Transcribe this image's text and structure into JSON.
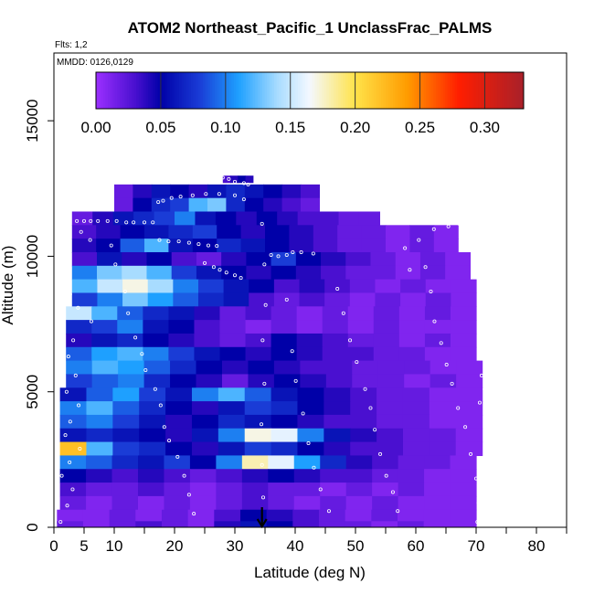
{
  "chart_data": {
    "type": "heatmap",
    "title": "ATOM2 Northeast_Pacific_1 UnclassFrac_PALMS",
    "flights_label": "Flts: 1,2",
    "dates_label": "MMDD: 0126,0129",
    "xlabel": "Latitude (deg N)",
    "ylabel": "Altitude (m)",
    "xlim": [
      0,
      85
    ],
    "ylim": [
      0,
      17500
    ],
    "x_ticks": [
      0,
      5,
      10,
      20,
      30,
      40,
      50,
      60,
      70,
      80
    ],
    "x_minor_ticks": [
      15,
      25,
      35,
      45,
      55,
      65,
      75,
      85
    ],
    "y_ticks": [
      0,
      5000,
      10000,
      15000
    ],
    "colorbar": {
      "min": 0.0,
      "max": 0.33,
      "tick_values": [
        0.0,
        0.05,
        0.1,
        0.15,
        0.2,
        0.25,
        0.3
      ],
      "tick_labels": [
        "0.00",
        "0.05",
        "0.10",
        "0.15",
        "0.20",
        "0.25",
        "0.30"
      ],
      "stops": [
        {
          "v": 0.0,
          "color": "#9b30ff"
        },
        {
          "v": 0.03,
          "color": "#4a10d0"
        },
        {
          "v": 0.05,
          "color": "#0000a8"
        },
        {
          "v": 0.08,
          "color": "#1a3cd6"
        },
        {
          "v": 0.11,
          "color": "#1ea0ff"
        },
        {
          "v": 0.14,
          "color": "#a8dcff"
        },
        {
          "v": 0.165,
          "color": "#f4f8ff"
        },
        {
          "v": 0.2,
          "color": "#ffe34a"
        },
        {
          "v": 0.24,
          "color": "#ff9c00"
        },
        {
          "v": 0.28,
          "color": "#ff1e00"
        },
        {
          "v": 0.33,
          "color": "#a8202a"
        }
      ]
    },
    "marker": {
      "latitude": 34.5,
      "symbol": "down-arrow"
    },
    "layers": [
      {
        "alt": 12850,
        "dz": 250,
        "lat0": 28,
        "lat1": 33,
        "values": [
          0.03,
          0.04,
          0.05,
          0.04
        ]
      },
      {
        "alt": 12400,
        "dz": 500,
        "lat0": 10,
        "lat1": 44,
        "values": [
          0.02,
          0.04,
          0.06,
          0.05,
          0.04,
          0.06,
          0.07,
          0.06,
          0.05,
          0.04,
          0.03
        ]
      },
      {
        "alt": 11900,
        "dz": 500,
        "lat0": 10,
        "lat1": 44,
        "values": [
          0.02,
          0.05,
          0.07,
          0.08,
          0.12,
          0.13,
          0.07,
          0.05,
          0.04,
          0.03,
          0.02
        ]
      },
      {
        "alt": 11400,
        "dz": 500,
        "lat0": 3,
        "lat1": 54,
        "values": [
          0.02,
          0.04,
          0.06,
          0.07,
          0.08,
          0.1,
          0.06,
          0.05,
          0.04,
          0.05,
          0.04,
          0.03,
          0.03,
          0.02,
          0.02
        ]
      },
      {
        "alt": 10900,
        "dz": 500,
        "lat0": 3,
        "lat1": 67,
        "values": [
          0.03,
          0.04,
          0.05,
          0.06,
          0.07,
          0.08,
          0.05,
          0.04,
          0.05,
          0.04,
          0.03,
          0.02,
          0.02,
          0.01,
          0.02,
          0.01
        ]
      },
      {
        "alt": 10400,
        "dz": 500,
        "lat0": 3,
        "lat1": 67,
        "values": [
          0.04,
          0.05,
          0.09,
          0.12,
          0.06,
          0.05,
          0.07,
          0.06,
          0.05,
          0.04,
          0.03,
          0.02,
          0.02,
          0.01,
          0.02,
          0.01
        ]
      },
      {
        "alt": 9900,
        "dz": 500,
        "lat0": 3,
        "lat1": 69,
        "values": [
          0.03,
          0.06,
          0.04,
          0.05,
          0.03,
          0.02,
          0.04,
          0.05,
          0.08,
          0.05,
          0.04,
          0.03,
          0.02,
          0.01,
          0.02,
          0.01
        ]
      },
      {
        "alt": 9400,
        "dz": 500,
        "lat0": 3,
        "lat1": 69,
        "values": [
          0.1,
          0.13,
          0.14,
          0.12,
          0.08,
          0.06,
          0.05,
          0.04,
          0.05,
          0.04,
          0.03,
          0.02,
          0.02,
          0.01,
          0.02,
          0.01
        ]
      },
      {
        "alt": 8900,
        "dz": 500,
        "lat0": 3,
        "lat1": 70,
        "values": [
          0.12,
          0.15,
          0.17,
          0.14,
          0.1,
          0.08,
          0.06,
          0.05,
          0.03,
          0.04,
          0.03,
          0.02,
          0.01,
          0.02,
          0.01,
          0.01
        ]
      },
      {
        "alt": 8400,
        "dz": 500,
        "lat0": 3,
        "lat1": 70,
        "values": [
          0.08,
          0.1,
          0.13,
          0.11,
          0.09,
          0.07,
          0.06,
          0.03,
          0.02,
          0.03,
          0.02,
          0.01,
          0.02,
          0.01,
          0.02,
          0.01
        ]
      },
      {
        "alt": 7900,
        "dz": 500,
        "lat0": 2,
        "lat1": 70,
        "values": [
          0.15,
          0.12,
          0.09,
          0.07,
          0.06,
          0.04,
          0.02,
          0.03,
          0.02,
          0.01,
          0.02,
          0.01,
          0.02,
          0.01,
          0.02,
          0.01
        ]
      },
      {
        "alt": 7400,
        "dz": 500,
        "lat0": 2,
        "lat1": 70,
        "values": [
          0.07,
          0.08,
          0.1,
          0.06,
          0.05,
          0.03,
          0.02,
          0.01,
          0.02,
          0.01,
          0.02,
          0.01,
          0.02,
          0.01,
          0.01,
          0.01
        ]
      },
      {
        "alt": 6900,
        "dz": 500,
        "lat0": 2,
        "lat1": 70,
        "values": [
          0.04,
          0.06,
          0.07,
          0.05,
          0.04,
          0.03,
          0.02,
          0.03,
          0.05,
          0.04,
          0.03,
          0.02,
          0.02,
          0.01,
          0.02,
          0.01
        ]
      },
      {
        "alt": 6400,
        "dz": 500,
        "lat0": 2,
        "lat1": 70,
        "values": [
          0.09,
          0.11,
          0.12,
          0.1,
          0.08,
          0.06,
          0.05,
          0.04,
          0.05,
          0.04,
          0.03,
          0.03,
          0.02,
          0.02,
          0.01,
          0.01
        ]
      },
      {
        "alt": 5900,
        "dz": 500,
        "lat0": 2,
        "lat1": 71,
        "values": [
          0.1,
          0.12,
          0.11,
          0.09,
          0.07,
          0.05,
          0.04,
          0.05,
          0.04,
          0.03,
          0.03,
          0.02,
          0.02,
          0.02,
          0.01,
          0.01
        ]
      },
      {
        "alt": 5400,
        "dz": 500,
        "lat0": 2,
        "lat1": 71,
        "values": [
          0.08,
          0.09,
          0.1,
          0.07,
          0.05,
          0.04,
          0.02,
          0.04,
          0.05,
          0.04,
          0.03,
          0.02,
          0.02,
          0.01,
          0.02,
          0.01
        ]
      },
      {
        "alt": 4900,
        "dz": 500,
        "lat0": 1,
        "lat1": 71,
        "values": [
          0.06,
          0.09,
          0.11,
          0.08,
          0.06,
          0.1,
          0.12,
          0.09,
          0.06,
          0.05,
          0.04,
          0.03,
          0.02,
          0.02,
          0.01,
          0.01
        ]
      },
      {
        "alt": 4400,
        "dz": 500,
        "lat0": 1,
        "lat1": 71,
        "values": [
          0.1,
          0.12,
          0.09,
          0.07,
          0.05,
          0.04,
          0.06,
          0.08,
          0.07,
          0.05,
          0.04,
          0.03,
          0.02,
          0.02,
          0.01,
          0.01
        ]
      },
      {
        "alt": 3900,
        "dz": 500,
        "lat0": 1,
        "lat1": 71,
        "values": [
          0.09,
          0.1,
          0.08,
          0.06,
          0.04,
          0.05,
          0.07,
          0.06,
          0.05,
          0.04,
          0.03,
          0.03,
          0.02,
          0.02,
          0.01,
          0.01
        ]
      },
      {
        "alt": 3400,
        "dz": 500,
        "lat0": 1,
        "lat1": 71,
        "values": [
          0.06,
          0.07,
          0.06,
          0.05,
          0.04,
          0.06,
          0.1,
          0.17,
          0.16,
          0.1,
          0.06,
          0.04,
          0.03,
          0.02,
          0.02,
          0.01
        ]
      },
      {
        "alt": 2900,
        "dz": 500,
        "lat0": 1,
        "lat1": 71,
        "values": [
          0.22,
          0.12,
          0.08,
          0.07,
          0.05,
          0.04,
          0.06,
          0.08,
          0.07,
          0.05,
          0.04,
          0.03,
          0.03,
          0.02,
          0.02,
          0.01
        ]
      },
      {
        "alt": 2400,
        "dz": 500,
        "lat0": 1,
        "lat1": 70,
        "values": [
          0.1,
          0.09,
          0.07,
          0.06,
          0.08,
          0.05,
          0.1,
          0.18,
          0.16,
          0.11,
          0.07,
          0.04,
          0.03,
          0.02,
          0.02,
          0.01
        ]
      },
      {
        "alt": 1900,
        "dz": 500,
        "lat0": 1,
        "lat1": 70,
        "values": [
          0.05,
          0.04,
          0.03,
          0.04,
          0.03,
          0.02,
          0.03,
          0.04,
          0.05,
          0.04,
          0.03,
          0.03,
          0.02,
          0.02,
          0.01,
          0.01
        ]
      },
      {
        "alt": 1400,
        "dz": 500,
        "lat0": 1,
        "lat1": 70,
        "values": [
          0.03,
          0.02,
          0.02,
          0.03,
          0.02,
          0.01,
          0.02,
          0.03,
          0.02,
          0.02,
          0.01,
          0.02,
          0.01,
          0.02,
          0.01,
          0.01
        ]
      },
      {
        "alt": 900,
        "dz": 500,
        "lat0": 1,
        "lat1": 70,
        "values": [
          0.02,
          0.01,
          0.02,
          0.01,
          0.02,
          0.01,
          0.02,
          0.03,
          0.02,
          0.01,
          0.02,
          0.01,
          0.02,
          0.01,
          0.01,
          0.01
        ]
      },
      {
        "alt": 400,
        "dz": 500,
        "lat0": 0.5,
        "lat1": 70,
        "values": [
          0.01,
          0.01,
          0.02,
          0.01,
          0.02,
          0.01,
          0.03,
          0.05,
          0.04,
          0.03,
          0.02,
          0.01,
          0.02,
          0.01,
          0.01,
          0.01
        ]
      },
      {
        "alt": 100,
        "dz": 250,
        "lat0": 0.5,
        "lat1": 70,
        "values": [
          0.02,
          0.01,
          0.02,
          0.03,
          0.02,
          0.01,
          0.04,
          0.06,
          0.05,
          0.03,
          0.02,
          0.02,
          0.01,
          0.02,
          0.01,
          0.01
        ]
      }
    ],
    "samples": [
      [
        2.2,
        11300
      ],
      [
        3.8,
        11300
      ],
      [
        5,
        11300
      ],
      [
        6.1,
        11300
      ],
      [
        7.3,
        11300
      ],
      [
        8.9,
        11300
      ],
      [
        10.4,
        11300
      ],
      [
        12,
        11250
      ],
      [
        13.2,
        11250
      ],
      [
        15,
        11250
      ],
      [
        16.4,
        11250
      ],
      [
        17.5,
        10600
      ],
      [
        19,
        10550
      ],
      [
        20.7,
        10550
      ],
      [
        22.4,
        10500
      ],
      [
        24,
        10450
      ],
      [
        25.6,
        10400
      ],
      [
        27,
        10380
      ],
      [
        25,
        9750
      ],
      [
        26.5,
        9600
      ],
      [
        27.5,
        9500
      ],
      [
        28.6,
        9400
      ],
      [
        30,
        9300
      ],
      [
        31,
        9200
      ],
      [
        36,
        10050
      ],
      [
        37.2,
        10000
      ],
      [
        38.6,
        10050
      ],
      [
        39.6,
        10150
      ],
      [
        41,
        10150
      ],
      [
        43,
        10100
      ],
      [
        28,
        12900
      ],
      [
        29,
        12850
      ],
      [
        30,
        12750
      ],
      [
        31.5,
        12700
      ],
      [
        32.2,
        12650
      ],
      [
        17.3,
        12000
      ],
      [
        18.1,
        12050
      ],
      [
        19.5,
        12150
      ],
      [
        21,
        12200
      ],
      [
        23,
        12250
      ],
      [
        25.2,
        12300
      ],
      [
        27.4,
        12300
      ],
      [
        30,
        12250
      ],
      [
        31.5,
        12100
      ],
      [
        4.5,
        10900
      ],
      [
        6,
        10600
      ],
      [
        2.6,
        10200
      ],
      [
        2.5,
        9400
      ],
      [
        2.7,
        8600
      ],
      [
        4,
        8100
      ],
      [
        6.2,
        7600
      ],
      [
        3.2,
        6900
      ],
      [
        2.4,
        6300
      ],
      [
        3.6,
        5600
      ],
      [
        2.1,
        5000
      ],
      [
        4.1,
        4500
      ],
      [
        2.7,
        3900
      ],
      [
        1.9,
        3400
      ],
      [
        4.3,
        2900
      ],
      [
        2.6,
        2400
      ],
      [
        1.3,
        1900
      ],
      [
        3.1,
        1400
      ],
      [
        2.2,
        800
      ],
      [
        1.1,
        200
      ],
      [
        8.1,
        11900
      ],
      [
        9.5,
        10400
      ],
      [
        10.2,
        9700
      ],
      [
        11.8,
        8700
      ],
      [
        12.3,
        7900
      ],
      [
        13.5,
        7000
      ],
      [
        14.6,
        6400
      ],
      [
        15.2,
        5800
      ],
      [
        16.8,
        5100
      ],
      [
        17.7,
        4500
      ],
      [
        18.3,
        3700
      ],
      [
        19.1,
        3200
      ],
      [
        20.5,
        2600
      ],
      [
        21.6,
        1900
      ],
      [
        22.4,
        1200
      ],
      [
        23.2,
        500
      ],
      [
        34.5,
        11200
      ],
      [
        34.9,
        9700
      ],
      [
        35.1,
        8200
      ],
      [
        34.6,
        6900
      ],
      [
        34.9,
        5300
      ],
      [
        34.4,
        3800
      ],
      [
        34.5,
        2300
      ],
      [
        34.7,
        1100
      ],
      [
        38.6,
        8400
      ],
      [
        39.5,
        6500
      ],
      [
        40.1,
        5400
      ],
      [
        41.3,
        4200
      ],
      [
        42.2,
        3100
      ],
      [
        43.1,
        2200
      ],
      [
        44.2,
        1400
      ],
      [
        45.6,
        600
      ],
      [
        47,
        8800
      ],
      [
        48,
        7900
      ],
      [
        49.1,
        6900
      ],
      [
        50.2,
        6100
      ],
      [
        51.6,
        5100
      ],
      [
        52.5,
        4400
      ],
      [
        53.2,
        3600
      ],
      [
        54.1,
        2700
      ],
      [
        55.1,
        1900
      ],
      [
        56.2,
        1300
      ],
      [
        57,
        600
      ],
      [
        58.2,
        10300
      ],
      [
        59,
        9500
      ],
      [
        60.5,
        10600
      ],
      [
        61.6,
        9600
      ],
      [
        62.5,
        8700
      ],
      [
        63.1,
        7600
      ],
      [
        64.2,
        6800
      ],
      [
        65.1,
        6000
      ],
      [
        66,
        5300
      ],
      [
        67,
        4400
      ],
      [
        68.2,
        3700
      ],
      [
        69.1,
        2700
      ],
      [
        70,
        1800
      ],
      [
        70.4,
        900
      ],
      [
        70.2,
        200
      ],
      [
        63,
        11000
      ],
      [
        65.4,
        11100
      ],
      [
        67.2,
        11200
      ],
      [
        69.1,
        11000
      ],
      [
        70.6,
        4600
      ],
      [
        71.4,
        5100
      ],
      [
        70.9,
        5600
      ]
    ]
  }
}
